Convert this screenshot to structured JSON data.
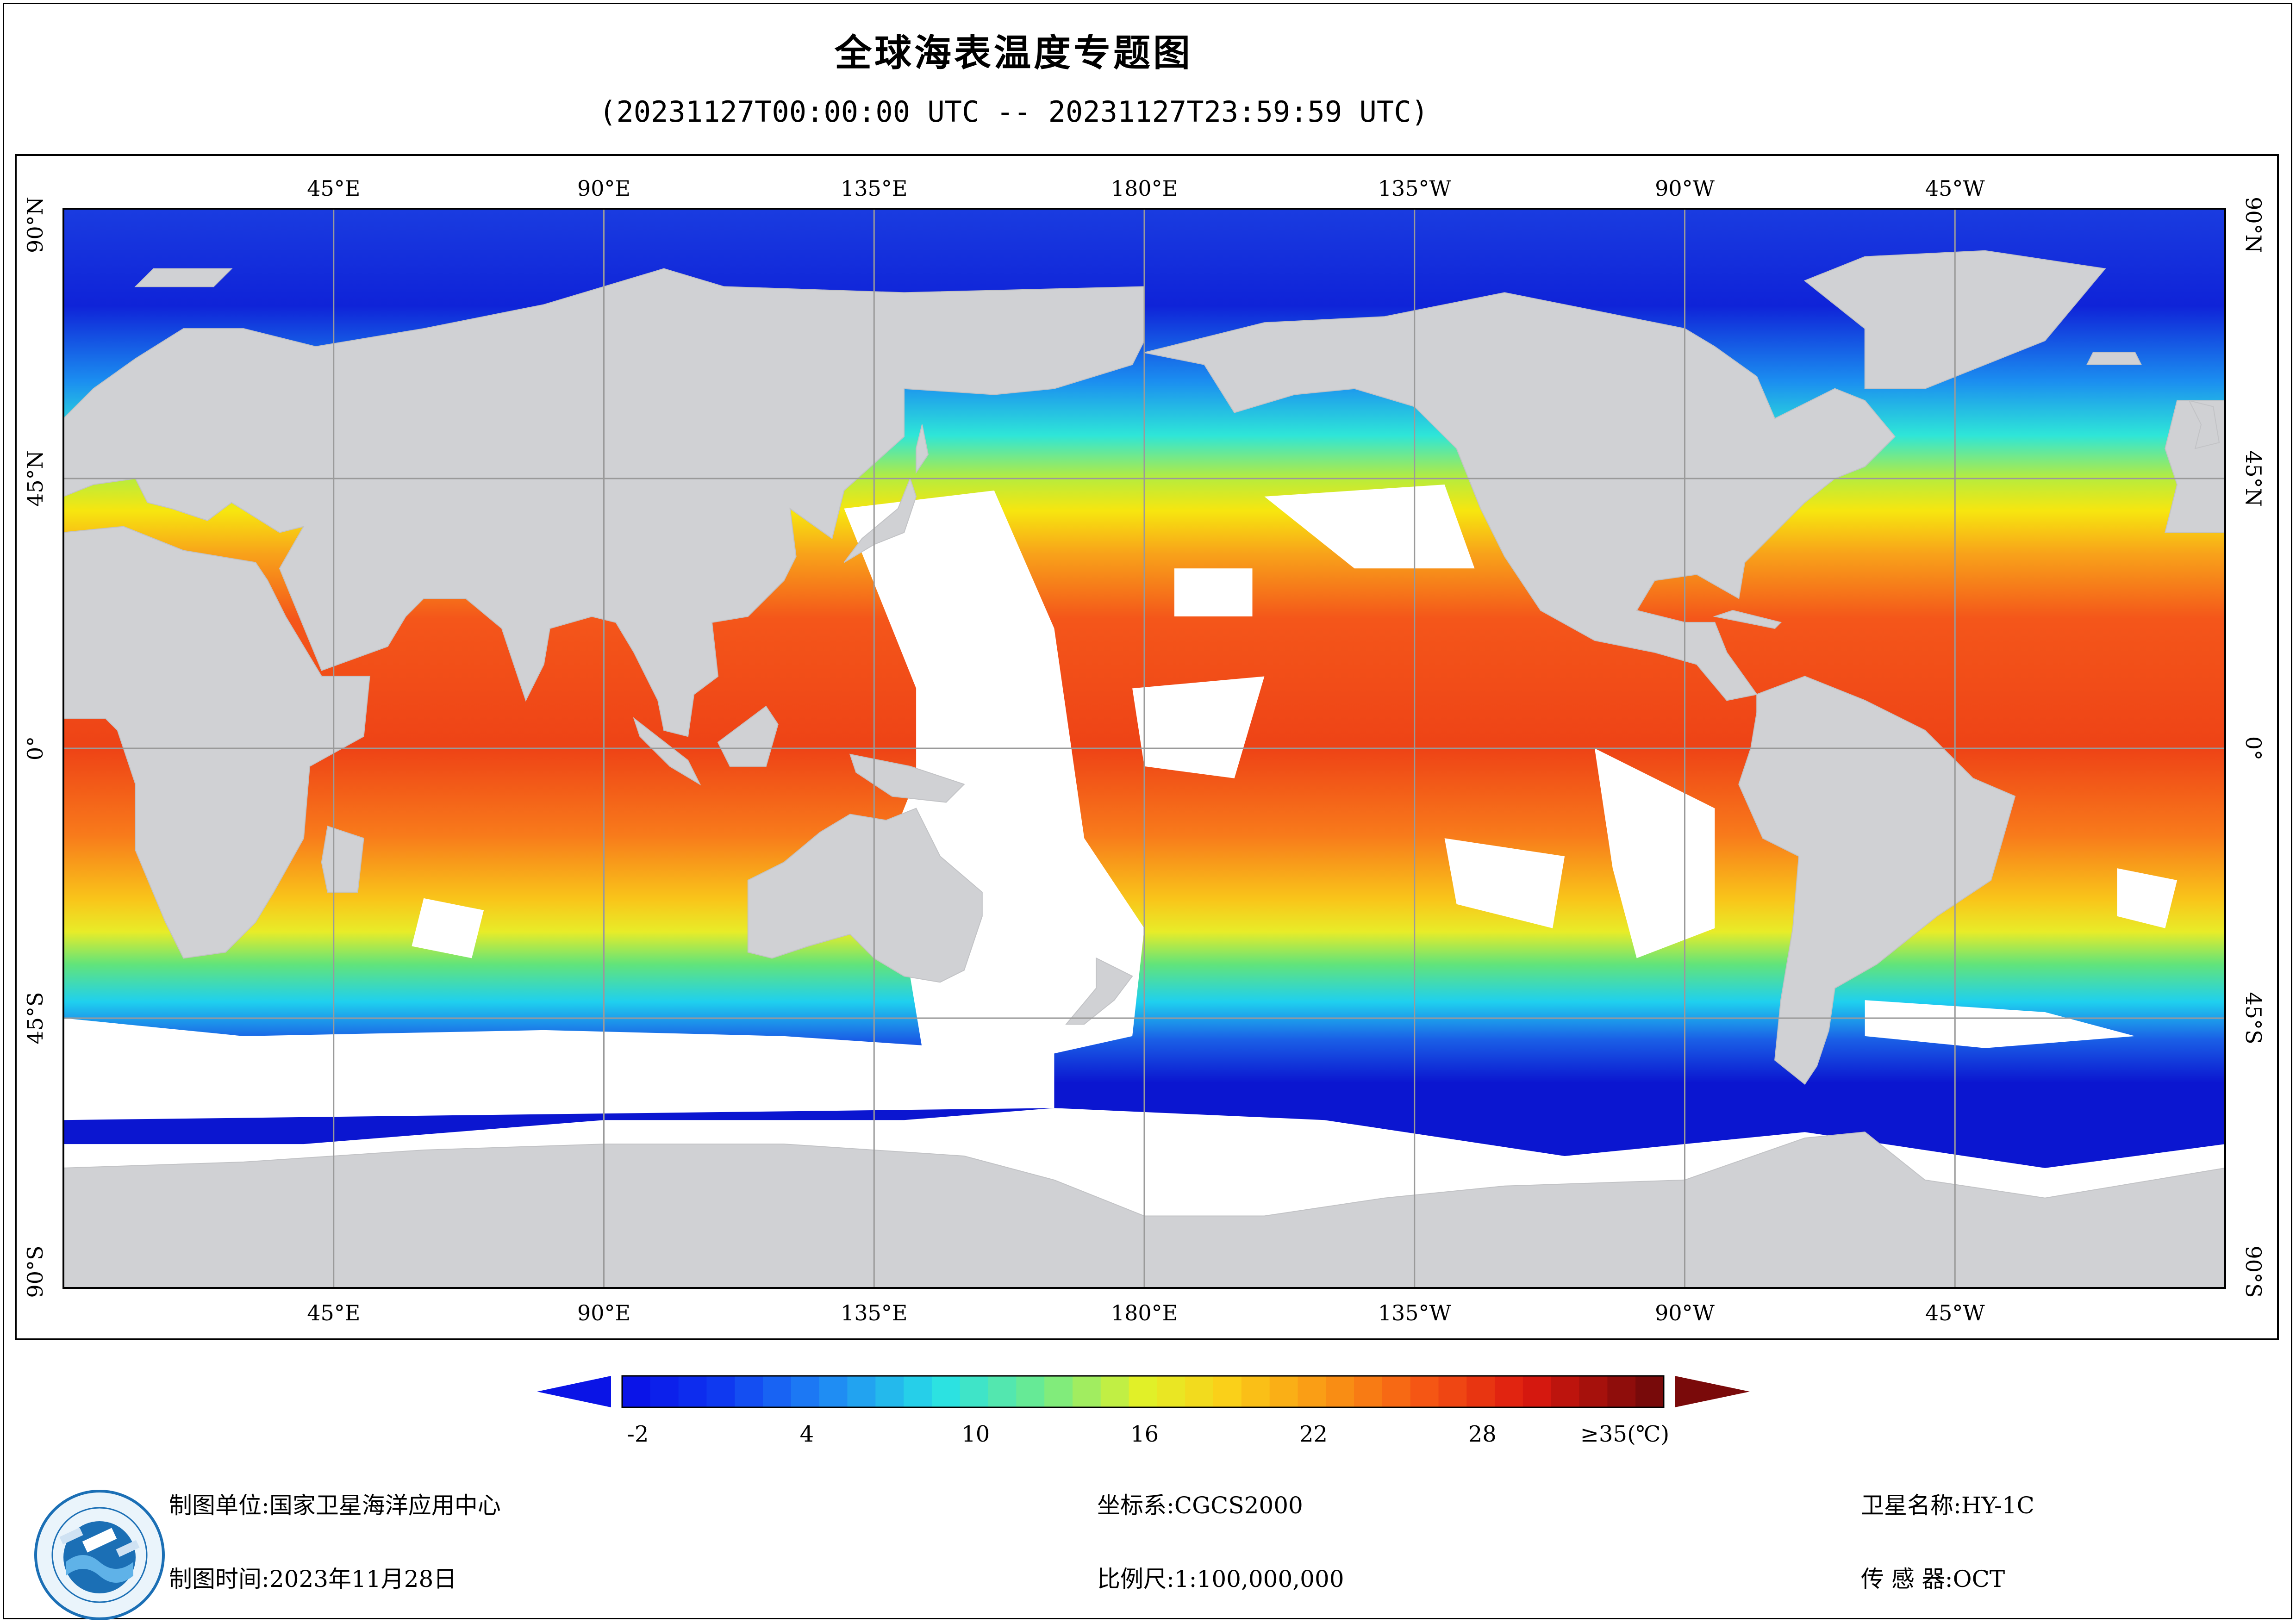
{
  "title": "全球海表温度专题图",
  "subtitle": "(20231127T00:00:00 UTC -- 20231127T23:59:59 UTC)",
  "map": {
    "top_lon_labels": [
      "45°E",
      "90°E",
      "135°E",
      "180°E",
      "135°W",
      "90°W",
      "45°W"
    ],
    "bottom_lon_labels": [
      "45°E",
      "90°E",
      "135°E",
      "180°E",
      "135°W",
      "90°W",
      "45°W"
    ],
    "lat_labels": [
      "90°N",
      "45°N",
      "0°",
      "45°S",
      "90°S"
    ],
    "colors": {
      "land": "#d0d1d4",
      "cloud": "#ffffff",
      "grid": "#9a9a9a"
    }
  },
  "colorbar": {
    "tick_labels": [
      "-2",
      "4",
      "10",
      "16",
      "22",
      "28",
      "≥35(℃)"
    ],
    "min_value": -2,
    "max_value": 35,
    "unit": "℃",
    "under_color": "#0a14e6",
    "over_color": "#7a0a0a"
  },
  "footer": {
    "org_label": "制图单位:",
    "org_value": "国家卫星海洋应用中心",
    "time_label": "制图时间:",
    "time_value": "2023年11月28日",
    "crs_label": "坐标系:",
    "crs_value": "CGCS2000",
    "scale_label": "比例尺:",
    "scale_value": "1:100,000,000",
    "satellite_label": "卫星名称:",
    "satellite_value": "HY-1C",
    "sensor_label": "传 感 器:",
    "sensor_value": "OCT"
  }
}
